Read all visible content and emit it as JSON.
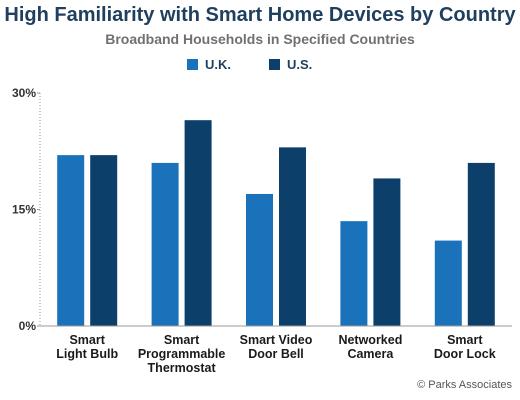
{
  "chart_data": {
    "type": "bar",
    "title": "High Familiarity with Smart Home Devices by Country",
    "subtitle": "Broadband Households in Specified Countries",
    "categories": [
      [
        "Smart",
        "Light Bulb"
      ],
      [
        "Smart",
        "Programmable",
        "Thermostat"
      ],
      [
        "Smart Video",
        "Door Bell"
      ],
      [
        "Networked",
        "Camera"
      ],
      [
        "Smart",
        "Door Lock"
      ]
    ],
    "series": [
      {
        "name": "U.K.",
        "color": "#1a72ba",
        "values": [
          22,
          21,
          17,
          13.5,
          11
        ]
      },
      {
        "name": "U.S.",
        "color": "#0d3f6b",
        "values": [
          22,
          26.5,
          23,
          19,
          21
        ]
      }
    ],
    "ylim": [
      0,
      30
    ],
    "yticks": [
      0,
      15,
      30
    ],
    "ytick_labels": [
      "0%",
      "15%",
      "30%"
    ],
    "legend_position": "top-center",
    "grid": false
  },
  "credit": "© Parks Associates"
}
